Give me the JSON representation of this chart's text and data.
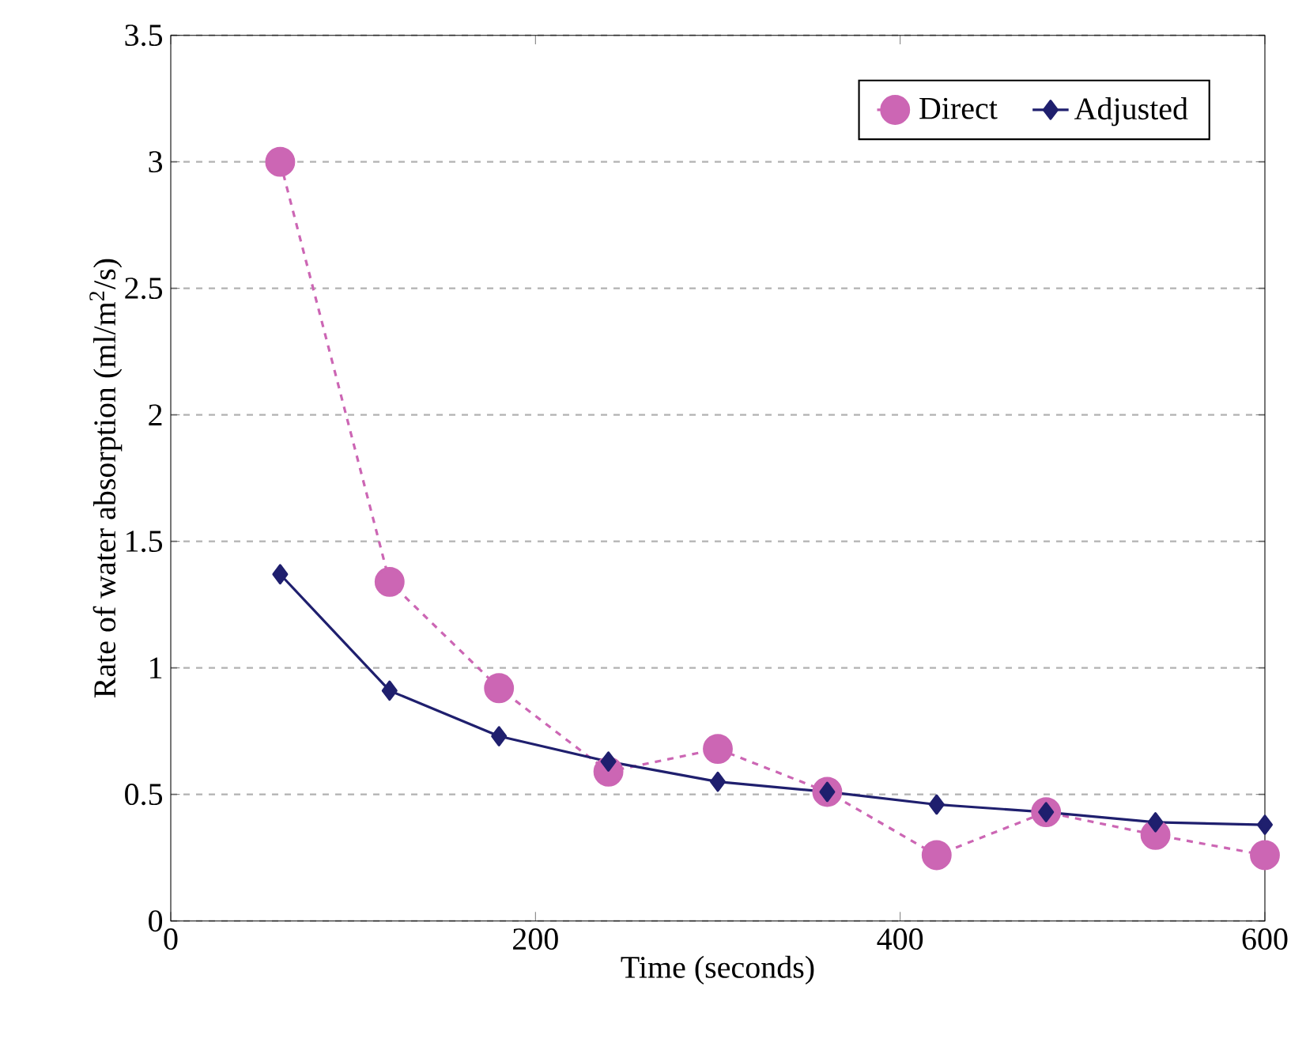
{
  "chart_data": {
    "type": "line",
    "xlabel": "Time (seconds)",
    "ylabel": "Rate of water absorption (ml/m$^{2}$/s)",
    "x": [
      60,
      120,
      180,
      240,
      300,
      360,
      420,
      480,
      540,
      600
    ],
    "series": [
      {
        "name": "Direct",
        "color": "#cc66b4",
        "marker": "circle",
        "line_style": "dashed",
        "values": [
          3.0,
          1.34,
          0.92,
          0.59,
          0.68,
          0.51,
          0.26,
          0.43,
          0.34,
          0.26
        ]
      },
      {
        "name": "Adjusted",
        "color": "#1f1f6e",
        "marker": "diamond",
        "line_style": "solid",
        "values": [
          1.37,
          0.91,
          0.73,
          0.63,
          0.55,
          0.51,
          0.46,
          0.43,
          0.39,
          0.38
        ]
      }
    ],
    "xlim": [
      0,
      600
    ],
    "xticks": [
      0,
      200,
      400,
      600
    ],
    "ylim": [
      0,
      3.5
    ],
    "yticks": [
      0,
      0.5,
      1,
      1.5,
      2,
      2.5,
      3,
      3.5
    ],
    "grid": "y",
    "legend": "top right"
  }
}
